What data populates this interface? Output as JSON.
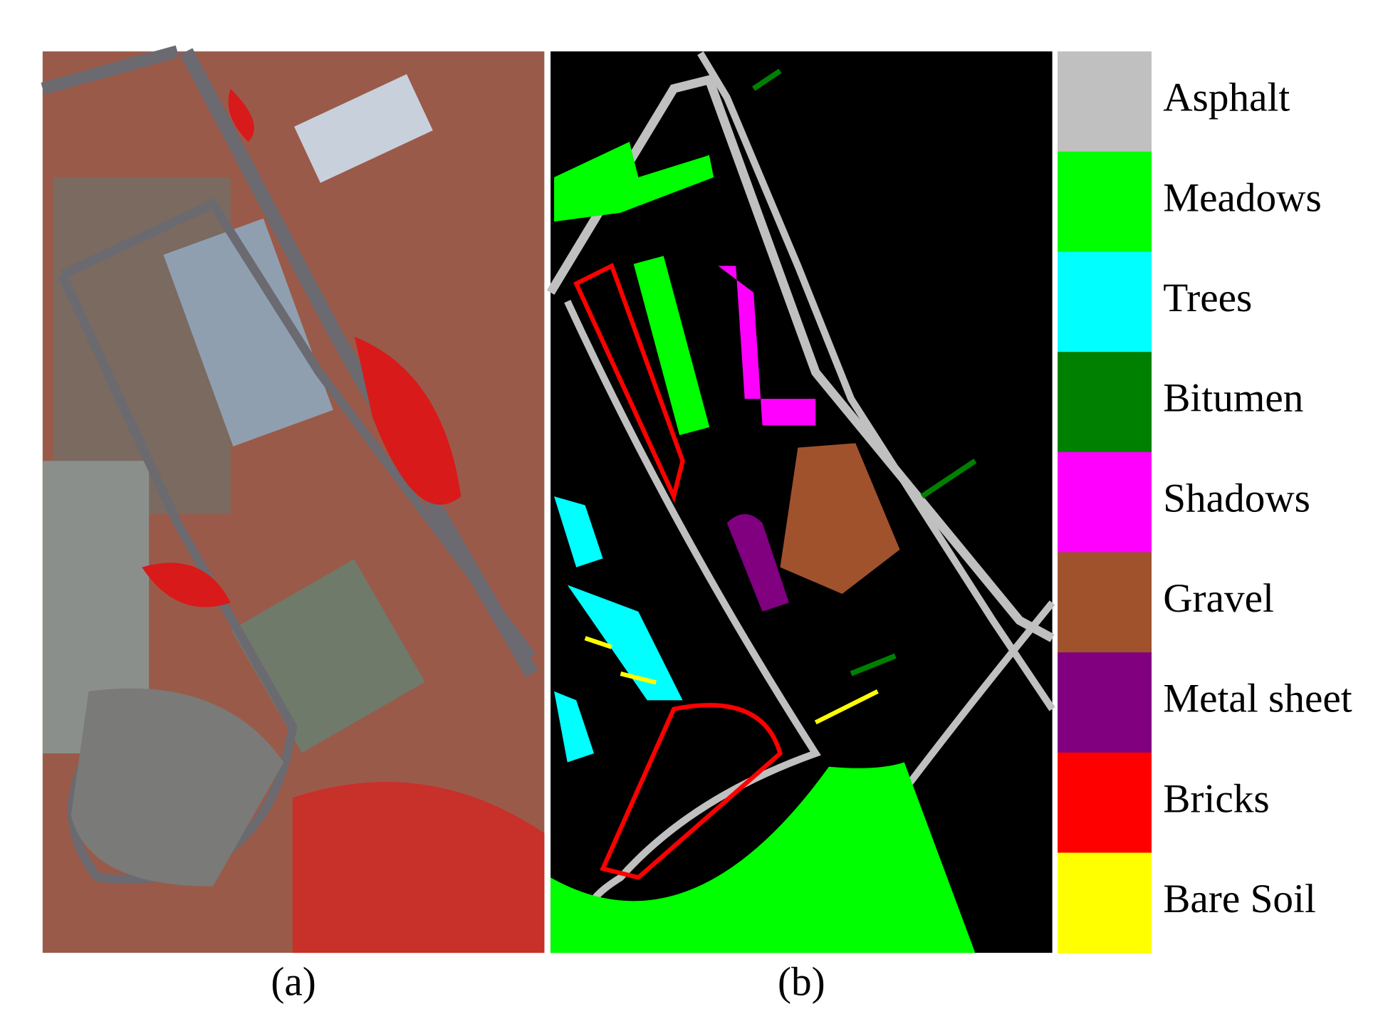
{
  "panels": [
    {
      "caption": "(a)"
    },
    {
      "caption": "(b)"
    }
  ],
  "legend": [
    {
      "label": "Asphalt",
      "color": "#c0c0c0"
    },
    {
      "label": "Meadows",
      "color": "#00ff00"
    },
    {
      "label": "Trees",
      "color": "#00ffff"
    },
    {
      "label": "Bitumen",
      "color": "#008000"
    },
    {
      "label": "Shadows",
      "color": "#ff00ff"
    },
    {
      "label": "Gravel",
      "color": "#a0522d"
    },
    {
      "label": "Metal sheet",
      "color": "#800080"
    },
    {
      "label": "Bricks",
      "color": "#ff0000"
    },
    {
      "label": "Bare Soil",
      "color": "#ffff00"
    }
  ]
}
